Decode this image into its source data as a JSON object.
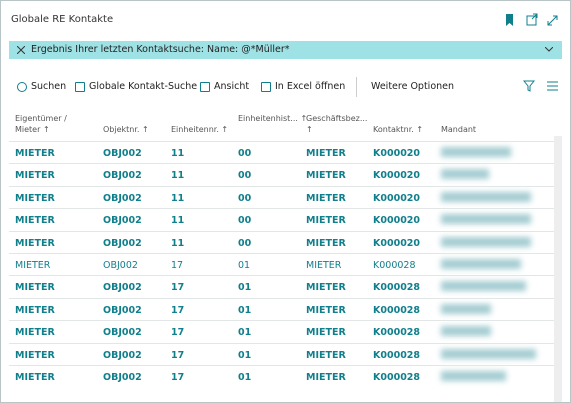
{
  "header": {
    "title": "Globale RE Kontakte"
  },
  "filter": {
    "text": "Ergebnis Ihrer letzten Kontaktsuche: Name: @*Müller*"
  },
  "toolbar": {
    "items": [
      "Suchen",
      "Globale Kontakt-Suche",
      "Ansicht",
      "In Excel öffnen"
    ],
    "more": "Weitere Optionen"
  },
  "table": {
    "columns": [
      "Eigentümer / Mieter ↑",
      "Objektnr. ↑",
      "Einheitennr. ↑",
      "Einheitenhist... ↑",
      "Geschäftsbez... ↑",
      "Kontaktnr. ↑",
      "Mandant"
    ],
    "rows": [
      [
        "MIETER",
        "OBJ002",
        "11",
        "00",
        "MIETER",
        "K000020"
      ],
      [
        "MIETER",
        "OBJ002",
        "11",
        "00",
        "MIETER",
        "K000020"
      ],
      [
        "MIETER",
        "OBJ002",
        "11",
        "00",
        "MIETER",
        "K000020"
      ],
      [
        "MIETER",
        "OBJ002",
        "11",
        "00",
        "MIETER",
        "K000020"
      ],
      [
        "MIETER",
        "OBJ002",
        "11",
        "00",
        "MIETER",
        "K000020"
      ],
      [
        "MIETER",
        "OBJ002",
        "17",
        "01",
        "MIETER",
        "K000028"
      ],
      [
        "MIETER",
        "OBJ002",
        "17",
        "01",
        "MIETER",
        "K000028"
      ],
      [
        "MIETER",
        "OBJ002",
        "17",
        "01",
        "MIETER",
        "K000028"
      ],
      [
        "MIETER",
        "OBJ002",
        "17",
        "01",
        "MIETER",
        "K000028"
      ],
      [
        "MIETER",
        "OBJ002",
        "17",
        "01",
        "MIETER",
        "K000028"
      ],
      [
        "MIETER",
        "OBJ002",
        "17",
        "01",
        "MIETER",
        "K000028"
      ]
    ]
  }
}
